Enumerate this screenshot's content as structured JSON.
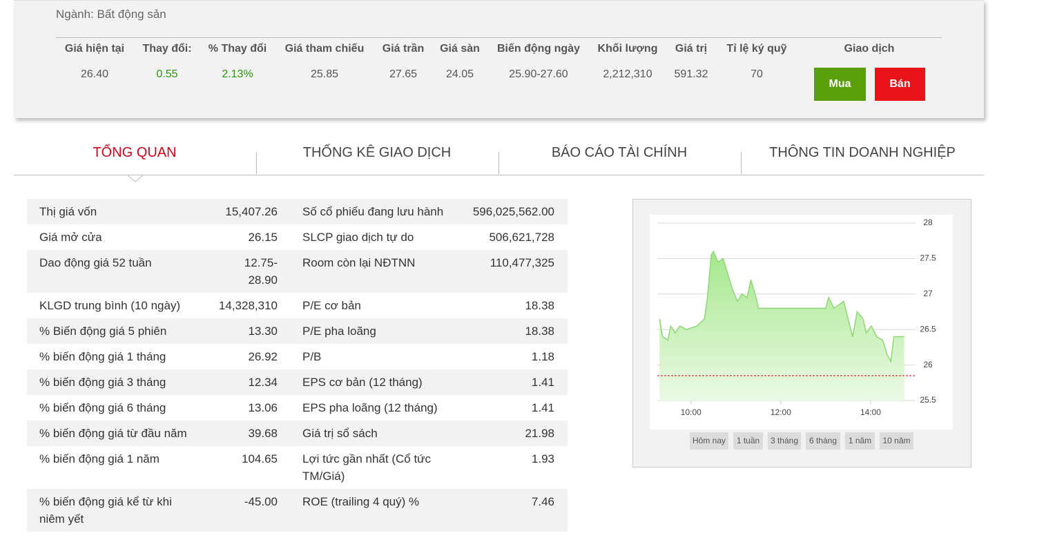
{
  "header": {
    "industry": "Ngành: Bất động sản"
  },
  "quote": {
    "headers": [
      "Giá hiện tại",
      "Thay đổi:",
      "% Thay đổi",
      "Giá tham chiếu",
      "Giá trần",
      "Giá sàn",
      "Biến động ngày",
      "Khối lượng",
      "Giá trị",
      "Tỉ lệ ký quỹ"
    ],
    "values": [
      "26.40",
      "0.55",
      "2.13%",
      "25.85",
      "27.65",
      "24.05",
      "25.90-27.60",
      "2,212,310",
      "591.32",
      "70"
    ],
    "trade_label": "Giao dịch",
    "actions": [
      "Mua",
      "Bán"
    ]
  },
  "tabs": [
    "TỔNG QUAN",
    "THỐNG KÊ GIAO DỊCH",
    "BÁO CÁO TÀI CHÍNH",
    "THÔNG TIN DOANH NGHIỆP"
  ],
  "overview": {
    "rows": [
      [
        "Thị giá vốn",
        "15,407.26",
        "Số cổ phiếu đang lưu hành",
        "596,025,562.00"
      ],
      [
        "Giá mở cửa",
        "26.15",
        "SLCP giao dịch tự do",
        "506,621,728"
      ],
      [
        "Dao động giá 52 tuần",
        "12.75-28.90",
        "Room còn lại NĐTNN",
        "110,477,325"
      ],
      [
        "KLGD trung bình (10 ngày)",
        "14,328,310",
        "P/E cơ bản",
        "18.38"
      ],
      [
        "% Biến động giá 5 phiên",
        "13.30",
        "P/E pha loãng",
        "18.38"
      ],
      [
        "% biến động giá 1 tháng",
        "26.92",
        "P/B",
        "1.18"
      ],
      [
        "% biến động giá 3 tháng",
        "12.34",
        "EPS cơ bản (12 tháng)",
        "1.41"
      ],
      [
        "% biến động giá 6 tháng",
        "13.06",
        "EPS pha loãng (12 tháng)",
        "1.41"
      ],
      [
        "% biến động giá từ đầu năm",
        "39.68",
        "Giá trị sổ sách",
        "21.98"
      ],
      [
        "% biến động giá 1 năm",
        "104.65",
        "Lợi tức gần nhất (Cổ tức TM/Giá)",
        "1.93"
      ],
      [
        "% biến động giá kể từ khi niêm yết",
        "-45.00",
        "ROE (trailing 4 quý) %",
        "7.46"
      ]
    ]
  },
  "chart_data": {
    "type": "area",
    "color": "#8fd776",
    "x": [
      "09:18",
      "09:22",
      "09:29",
      "09:33",
      "09:39",
      "09:45",
      "09:54",
      "10:08",
      "10:18",
      "10:22",
      "10:27",
      "10:30",
      "10:36",
      "10:43",
      "10:50",
      "10:56",
      "11:02",
      "11:08",
      "11:15",
      "11:20",
      "11:27",
      "11:30",
      "13:00",
      "13:04",
      "13:11",
      "13:18",
      "13:24",
      "13:31",
      "13:36",
      "13:42",
      "13:50",
      "13:54",
      "14:01",
      "14:08",
      "14:16",
      "14:22",
      "14:27",
      "14:31",
      "14:45"
    ],
    "values": [
      26.65,
      26.4,
      26.35,
      26.55,
      26.45,
      26.55,
      26.5,
      26.55,
      26.65,
      26.95,
      27.55,
      27.6,
      27.45,
      27.5,
      27.25,
      27.05,
      26.9,
      27.0,
      26.95,
      27.2,
      26.95,
      26.8,
      26.8,
      26.95,
      26.8,
      26.85,
      26.9,
      26.6,
      26.4,
      26.75,
      26.65,
      26.45,
      26.55,
      26.4,
      26.35,
      26.15,
      26.05,
      26.4,
      26.4
    ],
    "xlim": [
      "09:15",
      "15:00"
    ],
    "xticks": [
      "10:00",
      "12:00",
      "14:00"
    ],
    "ylim": [
      25.5,
      28
    ],
    "yticks": [
      25.5,
      26,
      26.5,
      27,
      27.5,
      28
    ],
    "grid": true,
    "reference": 25.85,
    "reference_color": "#d0021b",
    "ranges": [
      "Hôm nay",
      "1 tuần",
      "3 tháng",
      "6 tháng",
      "1 năm",
      "10 năm"
    ]
  }
}
